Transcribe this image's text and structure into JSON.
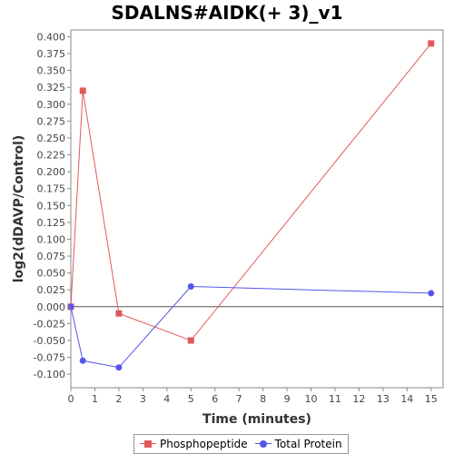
{
  "chart_data": {
    "type": "line",
    "title": "SDALNS#AIDK(+ 3)_v1",
    "xlabel": "Time (minutes)",
    "ylabel": "log2(dDAVP/Control)",
    "xlim": [
      0,
      15.5
    ],
    "ylim": [
      -0.12,
      0.41
    ],
    "x_ticks": [
      0,
      1,
      2,
      3,
      4,
      5,
      6,
      7,
      8,
      9,
      10,
      11,
      12,
      13,
      14,
      15
    ],
    "y_ticks": [
      "-0.100",
      "-0.075",
      "-0.050",
      "-0.025",
      "0.000",
      "0.025",
      "0.050",
      "0.075",
      "0.100",
      "0.125",
      "0.150",
      "0.175",
      "0.200",
      "0.225",
      "0.250",
      "0.275",
      "0.300",
      "0.325",
      "0.350",
      "0.375",
      "0.400"
    ],
    "grid": false,
    "legend_position": "bottom",
    "series": [
      {
        "name": "Phosphopeptide",
        "color": "#e05a5a",
        "marker": "square",
        "x": [
          0,
          0.5,
          2,
          5,
          15
        ],
        "y": [
          0.0,
          0.32,
          -0.01,
          -0.05,
          0.39
        ]
      },
      {
        "name": "Total Protein",
        "color": "#5555ee",
        "marker": "circle",
        "x": [
          0,
          0.5,
          2,
          5,
          15
        ],
        "y": [
          0.0,
          -0.08,
          -0.09,
          0.03,
          0.02
        ]
      }
    ]
  }
}
